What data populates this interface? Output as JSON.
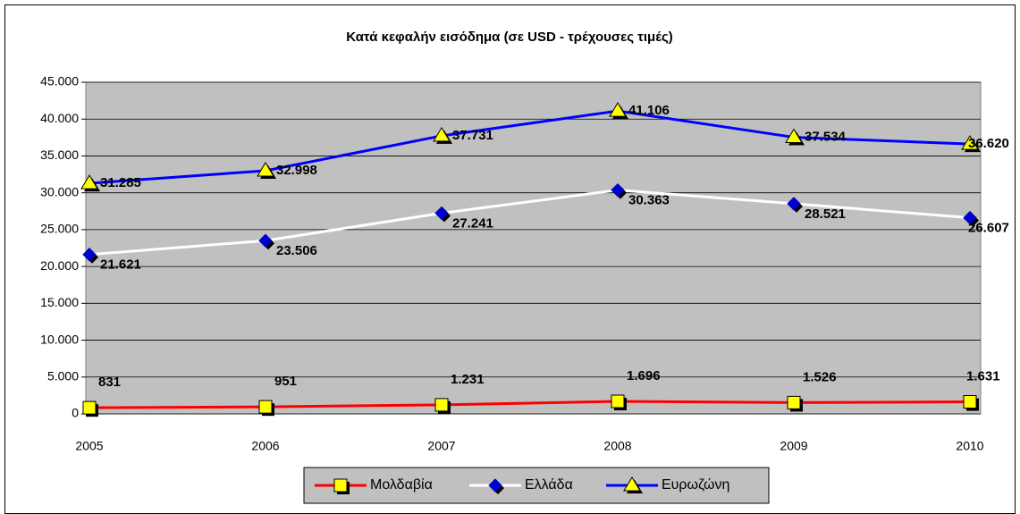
{
  "chart_data": {
    "type": "line",
    "title": "Κατά κεφαλήν εισόδημα (σε USD - τρέχουσες τιμές)",
    "categories": [
      "2005",
      "2006",
      "2007",
      "2008",
      "2009",
      "2010"
    ],
    "series": [
      {
        "name": "Μολδαβία",
        "color": "#ff0000",
        "marker": "square",
        "marker_color": "#ffff00",
        "values": [
          831,
          951,
          1231,
          1696,
          1526,
          1631
        ],
        "value_labels": [
          "831",
          "951",
          "1.231",
          "1.696",
          "1.526",
          "1.631"
        ]
      },
      {
        "name": "Ελλάδα",
        "color": "#ffffff",
        "marker": "diamond",
        "marker_color": "#0000cc",
        "values": [
          21621,
          23506,
          27241,
          30363,
          28521,
          26607
        ],
        "value_labels": [
          "21.621",
          "23.506",
          "27.241",
          "30.363",
          "28.521",
          "26.607"
        ]
      },
      {
        "name": "Ευρωζώνη",
        "color": "#0000ff",
        "marker": "triangle",
        "marker_color": "#ffff00",
        "values": [
          31285,
          32998,
          37731,
          41106,
          37534,
          36620
        ],
        "value_labels": [
          "31.285",
          "32.998",
          "37.731",
          "41.106",
          "37.534",
          "36.620"
        ]
      }
    ],
    "ylim": [
      0,
      45000
    ],
    "yticks": [
      0,
      {
        "value": 5000,
        "label": "5.000"
      },
      {
        "value": 10000,
        "label": "10.000"
      },
      {
        "value": 15000,
        "label": "15.000"
      },
      {
        "value": 20000,
        "label": "20.000"
      },
      {
        "value": 25000,
        "label": "25.000"
      },
      {
        "value": 30000,
        "label": "30.000"
      },
      {
        "value": 35000,
        "label": "35.000"
      },
      {
        "value": 40000,
        "label": "40.000"
      },
      {
        "value": 45000,
        "label": "45.000"
      }
    ],
    "grid": true,
    "legend": "bottom",
    "plot_background": "#c0c0c0"
  }
}
